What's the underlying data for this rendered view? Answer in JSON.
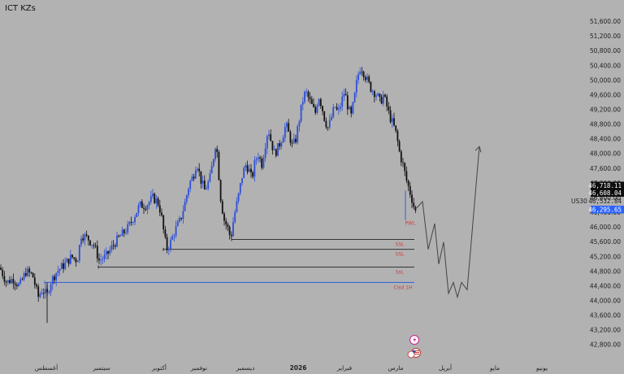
{
  "indicator_title": "ICT KZs",
  "symbol": "US30",
  "colors": {
    "background": "#b2b2b2",
    "up": "#2d4fd6",
    "down": "#111111",
    "level_black": "#222222",
    "level_blue": "#2b5de0",
    "label_red": "#d63a3a",
    "current_price_bg": "#2a62ff",
    "projection": "#444444"
  },
  "chart_data": {
    "type": "candlestick",
    "y_axis": {
      "position": "right",
      "ticks": [
        51600,
        51200,
        50800,
        50400,
        50000,
        49600,
        49200,
        48800,
        48400,
        48000,
        47600,
        47200,
        46800,
        46400,
        46000,
        45600,
        45200,
        44800,
        44400,
        44000,
        43600,
        43200,
        42800
      ],
      "tick_labels": [
        "51,600.00",
        "51,200.00",
        "50,800.00",
        "50,400.00",
        "50,000.00",
        "49,600.00",
        "49,200.00",
        "48,800.00",
        "48,400.00",
        "48,000.00",
        "47,600.00",
        "47,200.00",
        "46,800.00",
        "46,400.00",
        "46,000.00",
        "45,600.00",
        "45,200.00",
        "44,800.00",
        "44,400.00",
        "44,000.00",
        "43,600.00",
        "43,200.00",
        "42,800.00"
      ],
      "range": [
        42450,
        52100
      ]
    },
    "x_axis": {
      "labels": [
        "أغسطس",
        "سبتمبر",
        "أكتوبر",
        "نوفمبر",
        "ديسمبر",
        "2026",
        "فبراير",
        "مارس",
        "أبريل",
        "مايو",
        "يونيو"
      ],
      "bold_label": "2026"
    },
    "price_tags": [
      {
        "label": "46,718.11",
        "value": 46718.11,
        "style": "dark"
      },
      {
        "label": "46,608.04",
        "value": 46608.04,
        "style": "dark"
      },
      {
        "label": "46,532.84",
        "value": 46532.84,
        "style": "plain"
      },
      {
        "label": "46,295.65",
        "value": 46295.65,
        "style": "blue"
      }
    ],
    "levels": [
      {
        "label": "SSL",
        "value": 45670,
        "color": "#222222"
      },
      {
        "label": "SSL",
        "value": 45400,
        "color": "#222222"
      },
      {
        "label": "SsL",
        "value": 44920,
        "color": "#222222"
      },
      {
        "label": "Cisd 1H",
        "value": 44500,
        "color": "#2b5de0"
      }
    ],
    "annotations": [
      {
        "label": "PWL",
        "value": 46200
      }
    ],
    "candles_anchor_path": [
      [
        0,
        44900
      ],
      [
        8,
        44500
      ],
      [
        16,
        44600
      ],
      [
        24,
        44400
      ],
      [
        32,
        44800
      ],
      [
        40,
        44700
      ],
      [
        47,
        44100
      ],
      [
        52,
        44300
      ],
      [
        58,
        44150
      ],
      [
        62,
        44500
      ],
      [
        70,
        44800
      ],
      [
        80,
        45000
      ],
      [
        88,
        45200
      ],
      [
        95,
        45100
      ],
      [
        100,
        45800
      ],
      [
        108,
        45700
      ],
      [
        116,
        45500
      ],
      [
        122,
        45100
      ],
      [
        130,
        45200
      ],
      [
        136,
        45400
      ],
      [
        142,
        45600
      ],
      [
        150,
        45800
      ],
      [
        158,
        46000
      ],
      [
        165,
        46300
      ],
      [
        172,
        46600
      ],
      [
        180,
        46600
      ],
      [
        188,
        46800
      ],
      [
        194,
        46700
      ],
      [
        198,
        46400
      ],
      [
        202,
        45800
      ],
      [
        205,
        45400
      ],
      [
        210,
        45600
      ],
      [
        215,
        45900
      ],
      [
        222,
        46200
      ],
      [
        228,
        46700
      ],
      [
        233,
        47200
      ],
      [
        238,
        47400
      ],
      [
        242,
        47800
      ],
      [
        247,
        47300
      ],
      [
        252,
        47000
      ],
      [
        258,
        47300
      ],
      [
        262,
        47800
      ],
      [
        266,
        48400
      ],
      [
        269,
        47500
      ],
      [
        272,
        46700
      ],
      [
        276,
        46200
      ],
      [
        280,
        46000
      ],
      [
        284,
        45700
      ],
      [
        288,
        46300
      ],
      [
        293,
        46800
      ],
      [
        298,
        47400
      ],
      [
        302,
        47700
      ],
      [
        306,
        47600
      ],
      [
        310,
        47300
      ],
      [
        314,
        47800
      ],
      [
        318,
        48000
      ],
      [
        322,
        47700
      ],
      [
        326,
        48200
      ],
      [
        330,
        48700
      ],
      [
        334,
        48300
      ],
      [
        338,
        48000
      ],
      [
        343,
        48200
      ],
      [
        348,
        48500
      ],
      [
        352,
        48800
      ],
      [
        356,
        48500
      ],
      [
        360,
        48200
      ],
      [
        364,
        48400
      ],
      [
        368,
        48900
      ],
      [
        372,
        49400
      ],
      [
        376,
        49700
      ],
      [
        380,
        49500
      ],
      [
        384,
        49300
      ],
      [
        388,
        49100
      ],
      [
        392,
        49600
      ],
      [
        396,
        49300
      ],
      [
        400,
        48900
      ],
      [
        404,
        48700
      ],
      [
        408,
        49000
      ],
      [
        412,
        49300
      ],
      [
        416,
        49100
      ],
      [
        420,
        49400
      ],
      [
        424,
        49700
      ],
      [
        428,
        49300
      ],
      [
        432,
        49000
      ],
      [
        436,
        49500
      ],
      [
        440,
        50100
      ],
      [
        444,
        50400
      ],
      [
        448,
        50200
      ],
      [
        452,
        50000
      ],
      [
        456,
        49800
      ],
      [
        460,
        49700
      ],
      [
        464,
        49600
      ],
      [
        468,
        49400
      ],
      [
        472,
        49600
      ],
      [
        476,
        49300
      ],
      [
        480,
        49000
      ],
      [
        484,
        48800
      ],
      [
        488,
        48500
      ],
      [
        492,
        48000
      ],
      [
        496,
        47700
      ],
      [
        500,
        47300
      ],
      [
        504,
        47000
      ],
      [
        508,
        46700
      ],
      [
        511,
        46400
      ],
      [
        513,
        46530
      ]
    ],
    "projection_path": [
      [
        513,
        46530
      ],
      [
        520,
        46700
      ],
      [
        527,
        45400
      ],
      [
        535,
        46100
      ],
      [
        540,
        45000
      ],
      [
        546,
        45600
      ],
      [
        552,
        44200
      ],
      [
        558,
        44500
      ],
      [
        563,
        44100
      ],
      [
        568,
        44500
      ],
      [
        575,
        44300
      ],
      [
        590,
        48200
      ]
    ],
    "projection_arrow_head": true
  }
}
